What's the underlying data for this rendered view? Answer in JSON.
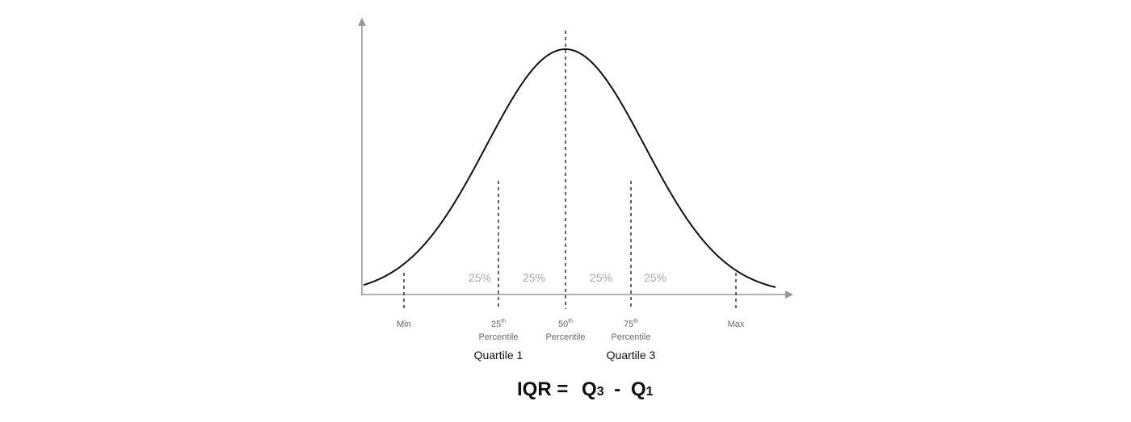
{
  "diagram": {
    "section_percentages": [
      "25%",
      "25%",
      "25%",
      "25%"
    ],
    "markers": {
      "min": {
        "label": "Min"
      },
      "p25": {
        "number": "25",
        "suffix": "th",
        "caption": "Percentile",
        "quartile": "Quartile 1"
      },
      "p50": {
        "number": "50",
        "suffix": "th",
        "caption": "Percentile"
      },
      "p75": {
        "number": "75",
        "suffix": "th",
        "caption": "Percentile",
        "quartile": "Quartile 3"
      },
      "max": {
        "label": "Max"
      }
    },
    "formula": {
      "lhs": "IQR =",
      "q3_letter": "Q",
      "q3_sub": "3",
      "minus": "-",
      "q1_letter": "Q",
      "q1_sub": "1"
    },
    "colors": {
      "curve": "#111111",
      "axis": "#999999",
      "dashes": "#222222",
      "percent_text": "#a8a8a8",
      "marker_text": "#666666"
    }
  }
}
